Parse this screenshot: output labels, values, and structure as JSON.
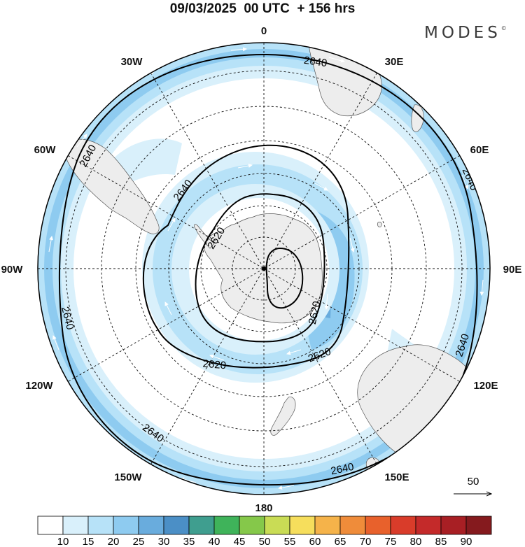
{
  "header": {
    "title": "09/03/2025  00 UTC  + 156 hrs",
    "brand": "MODES",
    "brand_mark": "©"
  },
  "map": {
    "projection": "polar stereographic",
    "hemisphere": "south",
    "longitude_labels": [
      {
        "lon": 0,
        "text": "0"
      },
      {
        "lon": 30,
        "text": "30E"
      },
      {
        "lon": 60,
        "text": "60E"
      },
      {
        "lon": 90,
        "text": "90E"
      },
      {
        "lon": 120,
        "text": "120E"
      },
      {
        "lon": 150,
        "text": "150E"
      },
      {
        "lon": 180,
        "text": "180"
      },
      {
        "lon": -150,
        "text": "150W"
      },
      {
        "lon": -120,
        "text": "120W"
      },
      {
        "lon": -90,
        "text": "90W"
      },
      {
        "lon": -60,
        "text": "60W"
      },
      {
        "lon": -30,
        "text": "30W"
      }
    ],
    "contour_labels": [
      "2640",
      "2640",
      "2640",
      "2640",
      "2640",
      "2640",
      "2640",
      "2640",
      "2620",
      "2620"
    ],
    "contour_values": [
      2600,
      2620,
      2640
    ],
    "colors": {
      "land": "#ededed",
      "ocean": "#ffffff",
      "contour": "#000000",
      "wind_vectors": "#ffffff"
    }
  },
  "vector_reference": {
    "label": "50",
    "units_shown": false
  },
  "colorbar": {
    "ticks": [
      "10",
      "15",
      "20",
      "25",
      "30",
      "35",
      "40",
      "45",
      "50",
      "55",
      "60",
      "65",
      "70",
      "75",
      "80",
      "85",
      "90"
    ],
    "colors": [
      "#ffffff",
      "#d9f0fb",
      "#b7e2f8",
      "#8ecbf0",
      "#69acdd",
      "#4b8fc6",
      "#3f9e8f",
      "#3fb35a",
      "#85c84a",
      "#c9dc55",
      "#f6de5c",
      "#f5b34a",
      "#ef8c3a",
      "#e8612c",
      "#d93c2a",
      "#c42a2a",
      "#a81f24",
      "#851a1e"
    ]
  }
}
